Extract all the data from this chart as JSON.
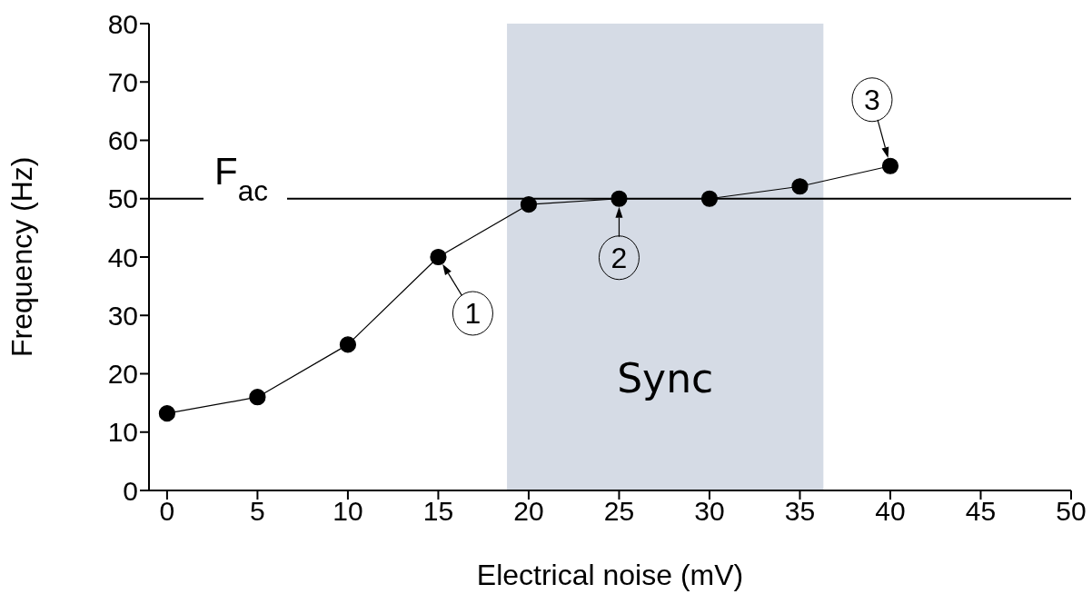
{
  "chart_data": {
    "type": "line",
    "xlabel": "Electrical noise (mV)",
    "ylabel": "Frequency (Hz)",
    "x": [
      0,
      5,
      10,
      15,
      20,
      25,
      30,
      35,
      40
    ],
    "series": [
      {
        "color": "#000000",
        "values": [
          13.2,
          16,
          25,
          40,
          49,
          50,
          50,
          52.1,
          55.6
        ]
      }
    ],
    "marker": "circle",
    "line_style": "solid",
    "xlim": [
      -1,
      50
    ],
    "xticks": [
      0,
      5,
      10,
      15,
      20,
      25,
      30,
      35,
      40,
      45,
      50
    ],
    "ylim": [
      0,
      80
    ],
    "yticks": [
      0,
      10,
      20,
      30,
      40,
      50,
      60,
      70,
      80
    ],
    "ref_lines": [
      {
        "axis": "y",
        "value": 50,
        "label": "F$_{ac}$",
        "color": "#000000"
      }
    ],
    "bands": [
      {
        "axis": "x",
        "from": 18.8,
        "to": 36.3,
        "label": "Sync",
        "color": "#d5dbe5"
      }
    ],
    "annotations": [
      {
        "text": "1",
        "x": 15,
        "y": 40
      },
      {
        "text": "2",
        "x": 25,
        "y": 50
      },
      {
        "text": "3",
        "x": 40,
        "y": 55.6
      }
    ]
  }
}
